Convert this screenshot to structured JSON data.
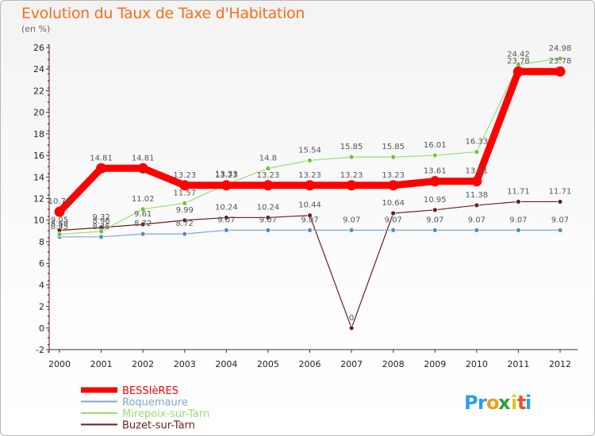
{
  "chart_data": {
    "type": "line",
    "title": "Evolution du Taux de Taxe d'Habitation",
    "subtitle": "(en %)",
    "x": [
      "2000",
      "2001",
      "2002",
      "2003",
      "2004",
      "2005",
      "2006",
      "2007",
      "2008",
      "2009",
      "2010",
      "2011",
      "2012"
    ],
    "ylim": [
      -2,
      26
    ],
    "yticks": [
      -2,
      0,
      2,
      4,
      6,
      8,
      10,
      12,
      14,
      16,
      18,
      20,
      22,
      24,
      26
    ],
    "series": [
      {
        "name": "Buzet-sur-Tarn",
        "color": "#6b1e1e",
        "line_width": 1.2,
        "marker": "#6b1e1e",
        "values": [
          9.05,
          9.32,
          9.61,
          9.99,
          10.24,
          10.24,
          10.44,
          0,
          10.64,
          10.95,
          11.38,
          11.71,
          11.71
        ],
        "labels": [
          "9.05",
          "9.32",
          "9.61",
          "9.99",
          "10.24",
          "10.24",
          "10.44",
          "0",
          "10.64",
          "10.95",
          "11.38",
          "11.71",
          "11.71"
        ]
      },
      {
        "name": "Roquemaure",
        "color": "#7ea7cf",
        "line_width": 1.2,
        "marker": "#4f8fcf",
        "values": [
          8.45,
          8.45,
          8.72,
          8.72,
          9.07,
          9.07,
          9.07,
          9.07,
          9.07,
          9.07,
          9.07,
          9.07,
          9.07
        ],
        "labels": [
          "8.45",
          "8.45",
          "8.72",
          "8.72",
          "9.07",
          "9.07",
          "9.07",
          "9.07",
          "9.07",
          "9.07",
          "9.07",
          "9.07",
          "9.07"
        ]
      },
      {
        "name": "Mirepoix-sur-Tarn",
        "color": "#9bdc74",
        "line_width": 1.2,
        "marker": "#6cc43a",
        "values": [
          8.69,
          8.96,
          11.02,
          11.57,
          13.33,
          14.8,
          15.54,
          15.85,
          15.85,
          16.01,
          16.33,
          24.42,
          24.98
        ],
        "labels": [
          "8.69",
          "8.96",
          "11.02",
          "11.57",
          "13.33",
          "14.8",
          "15.54",
          "15.85",
          "15.85",
          "16.01",
          "16.33",
          "24.42",
          "24.98"
        ]
      },
      {
        "name": "BESSIèRES",
        "color": "#ff0000",
        "line_width": 9,
        "marker": "#ff0000",
        "values": [
          10.78,
          14.81,
          14.81,
          13.23,
          13.23,
          13.23,
          13.23,
          13.23,
          13.23,
          13.61,
          13.61,
          23.78,
          23.78
        ],
        "labels": [
          "10.78",
          "14.81",
          "14.81",
          "13.23",
          "13.23",
          "13.23",
          "13.23",
          "13.23",
          "13.23",
          "13.61",
          "13.61",
          "23.78",
          "23.78"
        ]
      }
    ],
    "legend": [
      {
        "name": "BESSIèRES",
        "color": "#ff0000"
      },
      {
        "name": "Roquemaure",
        "color": "#7ea7cf"
      },
      {
        "name": "Mirepoix-sur-Tarn",
        "color": "#9bdc74"
      },
      {
        "name": "Buzet-sur-Tarn",
        "color": "#6b1e1e"
      }
    ],
    "legend_position": "bottom-left"
  },
  "brand": {
    "name": "Proxiti",
    "letters": [
      "P",
      "r",
      "o",
      "x",
      "i",
      "t",
      "i"
    ],
    "colors": [
      "#2aa0e6",
      "#2aa0e6",
      "#f39a1e",
      "#2a9f3a",
      "#e8c31a",
      "#e8541e",
      "#2aa0e6"
    ]
  }
}
